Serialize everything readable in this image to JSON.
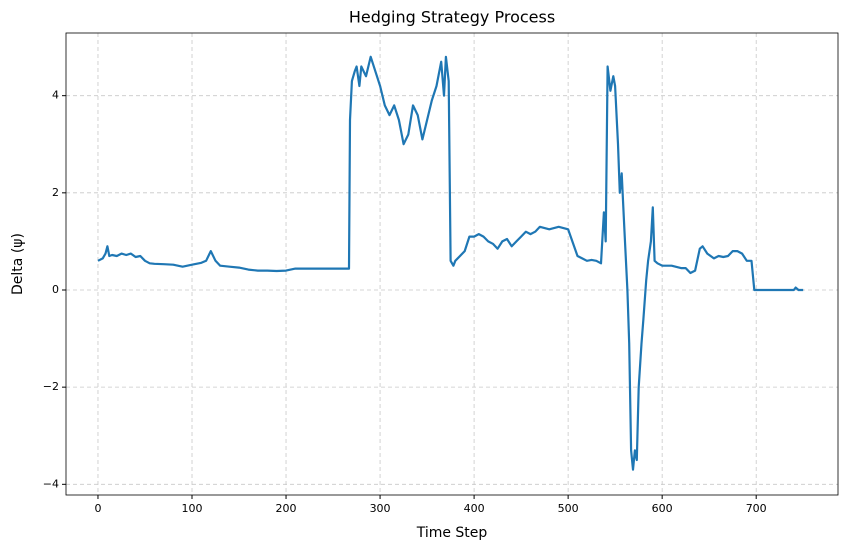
{
  "chart_data": {
    "type": "line",
    "title": "Hedging Strategy Process",
    "x_label": "Time Step",
    "y_label": "Delta (ψ)",
    "color": "#1f77b4",
    "grid": true,
    "xlim": [
      -34,
      787
    ],
    "ylim": [
      -4.22,
      5.29
    ],
    "xticks": [
      0,
      100,
      200,
      300,
      400,
      500,
      600,
      700
    ],
    "yticks": [
      {
        "value": -4,
        "label": "−4"
      },
      {
        "value": -2,
        "label": "−2"
      },
      0,
      2,
      4
    ],
    "x": [
      0,
      5,
      8,
      10,
      12,
      15,
      20,
      25,
      30,
      35,
      40,
      45,
      50,
      55,
      60,
      70,
      80,
      90,
      100,
      110,
      115,
      120,
      125,
      130,
      140,
      150,
      160,
      170,
      180,
      190,
      200,
      210,
      220,
      240,
      267,
      268,
      270,
      273,
      275,
      278,
      280,
      285,
      290,
      295,
      300,
      305,
      310,
      315,
      320,
      325,
      330,
      335,
      340,
      345,
      350,
      355,
      360,
      365,
      368,
      370,
      373,
      375,
      378,
      380,
      385,
      390,
      395,
      400,
      405,
      410,
      415,
      420,
      425,
      430,
      435,
      440,
      445,
      450,
      455,
      460,
      465,
      470,
      480,
      490,
      500,
      510,
      515,
      520,
      525,
      530,
      535,
      538,
      540,
      542,
      545,
      548,
      550,
      553,
      555,
      557,
      560,
      563,
      565,
      567,
      569,
      571,
      573,
      575,
      578,
      580,
      583,
      585,
      588,
      590,
      592,
      595,
      600,
      610,
      620,
      625,
      630,
      635,
      640,
      643,
      648,
      655,
      660,
      665,
      670,
      675,
      680,
      685,
      690,
      695,
      698,
      740,
      742,
      745,
      750
    ],
    "values": [
      0.6,
      0.65,
      0.75,
      0.9,
      0.7,
      0.72,
      0.7,
      0.75,
      0.72,
      0.75,
      0.68,
      0.7,
      0.6,
      0.55,
      0.54,
      0.53,
      0.52,
      0.48,
      0.52,
      0.56,
      0.6,
      0.8,
      0.6,
      0.5,
      0.48,
      0.46,
      0.42,
      0.4,
      0.4,
      0.39,
      0.4,
      0.44,
      0.44,
      0.44,
      0.44,
      3.5,
      4.3,
      4.5,
      4.6,
      4.2,
      4.6,
      4.4,
      4.8,
      4.5,
      4.2,
      3.8,
      3.6,
      3.8,
      3.5,
      3.0,
      3.2,
      3.8,
      3.6,
      3.1,
      3.5,
      3.9,
      4.2,
      4.7,
      4.0,
      4.8,
      4.3,
      0.6,
      0.5,
      0.6,
      0.7,
      0.8,
      1.1,
      1.1,
      1.15,
      1.1,
      1.0,
      0.95,
      0.85,
      1.0,
      1.05,
      0.9,
      1.0,
      1.1,
      1.2,
      1.15,
      1.2,
      1.3,
      1.25,
      1.3,
      1.25,
      0.7,
      0.65,
      0.6,
      0.62,
      0.6,
      0.55,
      1.6,
      1.0,
      4.6,
      4.1,
      4.4,
      4.2,
      3.0,
      2.0,
      2.4,
      1.2,
      0.0,
      -1.1,
      -3.3,
      -3.7,
      -3.3,
      -3.5,
      -2.0,
      -1.1,
      -0.6,
      0.2,
      0.6,
      1.0,
      1.7,
      0.6,
      0.55,
      0.5,
      0.5,
      0.45,
      0.45,
      0.35,
      0.4,
      0.85,
      0.9,
      0.75,
      0.65,
      0.7,
      0.68,
      0.7,
      0.8,
      0.8,
      0.75,
      0.6,
      0.6,
      0.0,
      0.0,
      0.05,
      0.0,
      0.0
    ]
  }
}
